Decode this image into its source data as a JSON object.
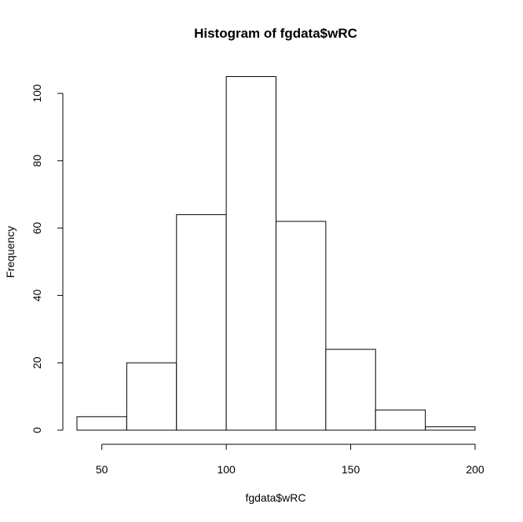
{
  "chart_data": {
    "type": "bar",
    "title": "Histogram of fgdata$wRC",
    "xlabel": "fgdata$wRC",
    "ylabel": "Frequency",
    "bins": [
      {
        "from": 40,
        "to": 60,
        "count": 4
      },
      {
        "from": 60,
        "to": 80,
        "count": 20
      },
      {
        "from": 80,
        "to": 100,
        "count": 64
      },
      {
        "from": 100,
        "to": 120,
        "count": 105
      },
      {
        "from": 120,
        "to": 140,
        "count": 62
      },
      {
        "from": 140,
        "to": 160,
        "count": 24
      },
      {
        "from": 160,
        "to": 180,
        "count": 6
      },
      {
        "from": 180,
        "to": 200,
        "count": 1
      }
    ],
    "xlim": [
      40,
      200
    ],
    "ylim": [
      0,
      105
    ],
    "xticks": [
      50,
      100,
      150,
      200
    ],
    "yticks": [
      0,
      20,
      40,
      60,
      80,
      100
    ],
    "grid": false,
    "legend": "none",
    "bar_fill": "#ffffff",
    "bar_stroke": "#000000"
  }
}
